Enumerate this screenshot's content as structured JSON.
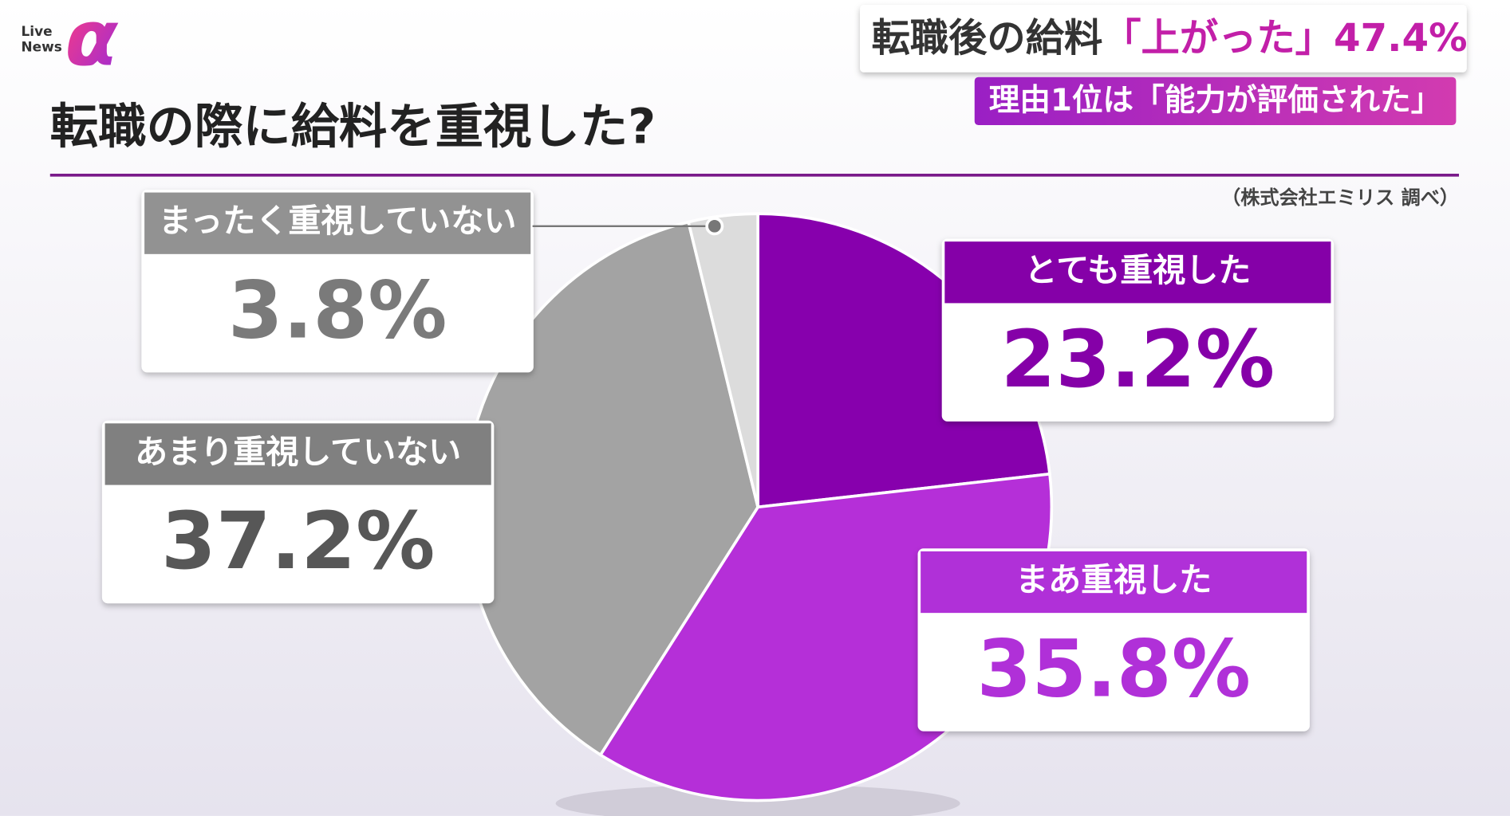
{
  "logo": {
    "line1": "Live",
    "line2": "News",
    "mark": "α"
  },
  "headline": {
    "lead": "転職後の給料",
    "highlight": "「上がった」47.4%",
    "sub": "理由1位は「能力が評価された」"
  },
  "chart_data": {
    "type": "pie",
    "title": "転職の際に給料を重視した?",
    "source": "（株式会社エミリス 調べ）",
    "categories": [
      "とても重視した",
      "まあ重視した",
      "あまり重視していない",
      "まったく重視していない"
    ],
    "values": [
      23.2,
      35.8,
      37.2,
      3.8
    ],
    "value_labels": [
      "23.2%",
      "35.8%",
      "37.2%",
      "3.8%"
    ],
    "colors": [
      "#8700ad",
      "#b52fd8",
      "#a3a3a3",
      "#dcdcdc"
    ]
  }
}
